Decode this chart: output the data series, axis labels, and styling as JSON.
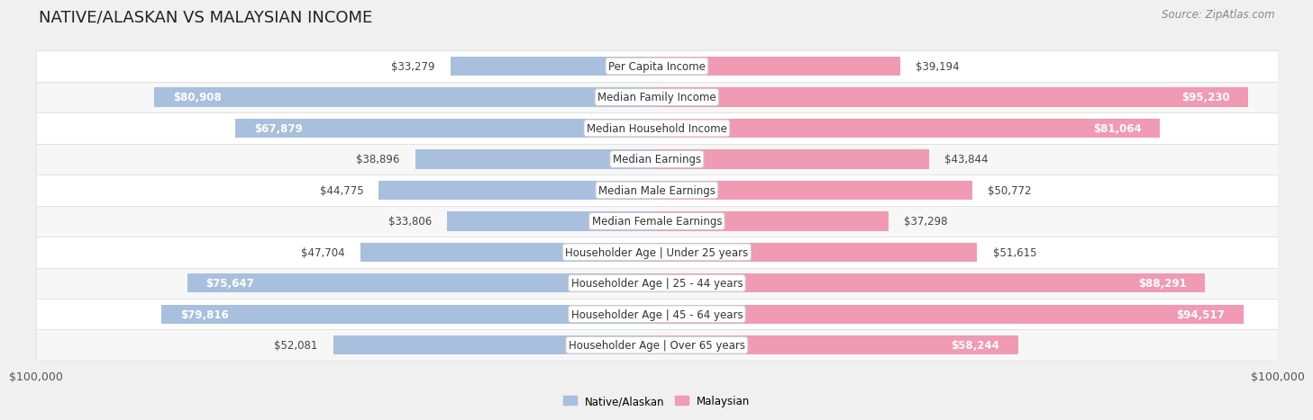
{
  "title": "NATIVE/ALASKAN VS MALAYSIAN INCOME",
  "source": "Source: ZipAtlas.com",
  "categories": [
    "Per Capita Income",
    "Median Family Income",
    "Median Household Income",
    "Median Earnings",
    "Median Male Earnings",
    "Median Female Earnings",
    "Householder Age | Under 25 years",
    "Householder Age | 25 - 44 years",
    "Householder Age | 45 - 64 years",
    "Householder Age | Over 65 years"
  ],
  "native_values": [
    33279,
    80908,
    67879,
    38896,
    44775,
    33806,
    47704,
    75647,
    79816,
    52081
  ],
  "malaysian_values": [
    39194,
    95230,
    81064,
    43844,
    50772,
    37298,
    51615,
    88291,
    94517,
    58244
  ],
  "native_color": "#a8bfde",
  "malaysian_color": "#f09ab4",
  "max_value": 100000,
  "bar_height": 0.62,
  "row_bg_even": "#f7f7f7",
  "row_bg_odd": "#ffffff",
  "bg_color": "#f0f0f0",
  "xlabel_left": "$100,000",
  "xlabel_right": "$100,000",
  "legend_label_native": "Native/Alaskan",
  "legend_label_malaysian": "Malaysian",
  "title_fontsize": 13,
  "label_fontsize": 8.5,
  "value_fontsize": 8.5,
  "tick_fontsize": 9,
  "source_fontsize": 8.5,
  "white_label_threshold": 55000
}
